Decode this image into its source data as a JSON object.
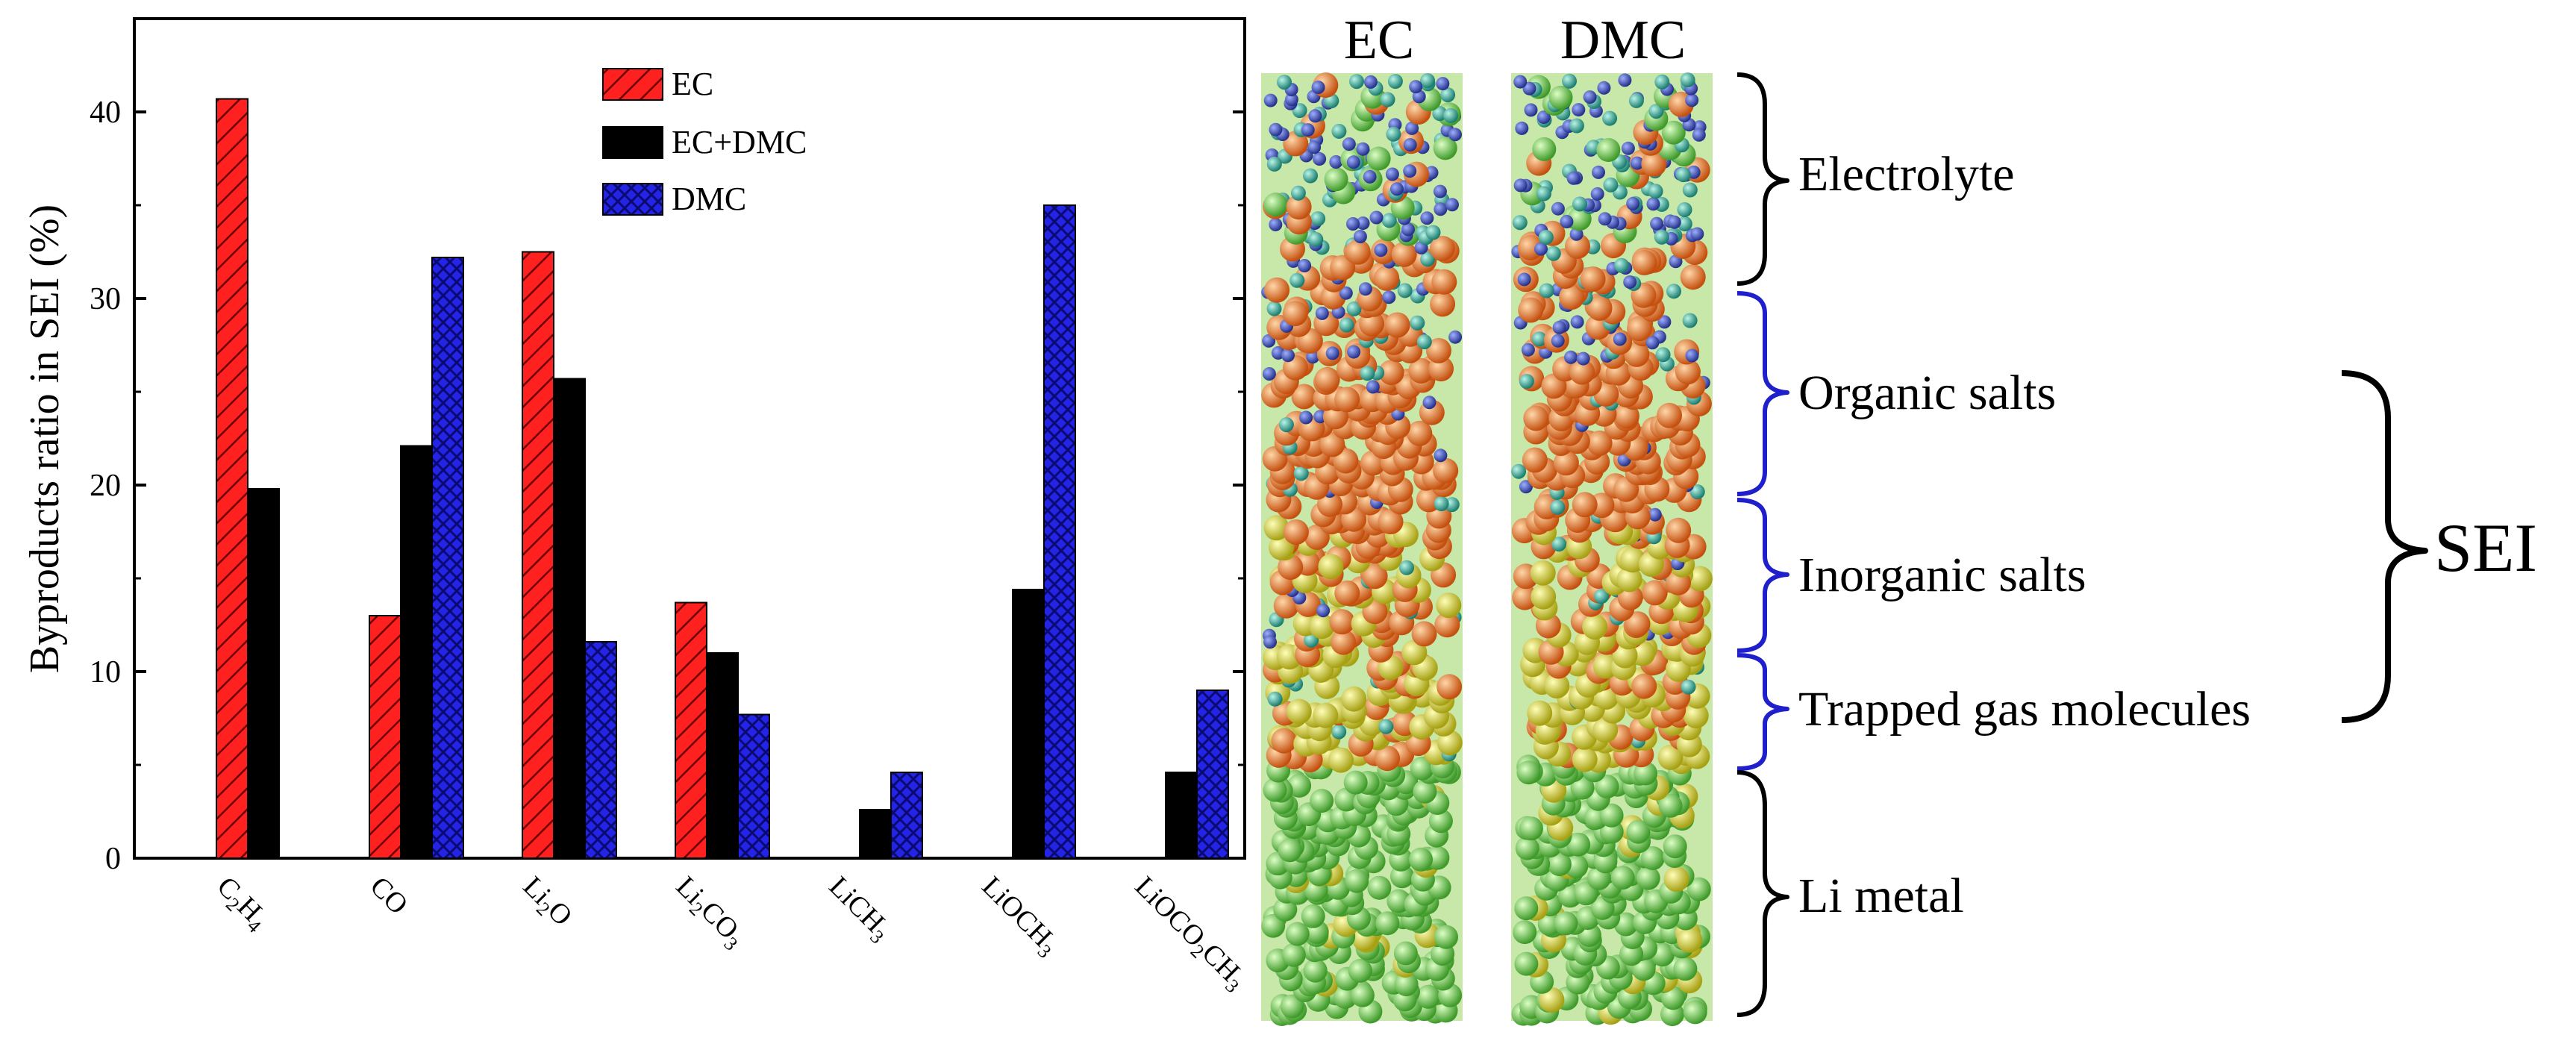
{
  "chart_data": {
    "type": "bar",
    "title": "",
    "xlabel": "",
    "ylabel": "Byproducts ratio in SEI (%)",
    "ylim": [
      0,
      45
    ],
    "yticks": [
      0,
      10,
      20,
      30,
      40
    ],
    "categories": [
      "C2H4",
      "CO",
      "Li2O",
      "Li2CO3",
      "LiCH3",
      "LiOCH3",
      "LiOCO2CH3"
    ],
    "category_labels": [
      [
        {
          "t": "C"
        },
        {
          "t": "2",
          "sub": true
        },
        {
          "t": "H"
        },
        {
          "t": "4",
          "sub": true
        }
      ],
      [
        {
          "t": "CO"
        }
      ],
      [
        {
          "t": "Li"
        },
        {
          "t": "2",
          "sub": true
        },
        {
          "t": "O"
        }
      ],
      [
        {
          "t": "Li"
        },
        {
          "t": "2",
          "sub": true
        },
        {
          "t": "CO"
        },
        {
          "t": "3",
          "sub": true
        }
      ],
      [
        {
          "t": "LiCH"
        },
        {
          "t": "3",
          "sub": true
        }
      ],
      [
        {
          "t": "LiOCH"
        },
        {
          "t": "3",
          "sub": true
        }
      ],
      [
        {
          "t": "LiOCO"
        },
        {
          "t": "2",
          "sub": true
        },
        {
          "t": "CH"
        },
        {
          "t": "3",
          "sub": true
        }
      ]
    ],
    "series": [
      {
        "name": "EC",
        "color": "#ff1a1a",
        "pattern": "hatch",
        "values": [
          40.7,
          13.0,
          32.5,
          13.7,
          0,
          0,
          0
        ]
      },
      {
        "name": "EC+DMC",
        "color": "#000000",
        "pattern": "solid",
        "values": [
          19.8,
          22.1,
          25.7,
          11.0,
          2.6,
          14.4,
          4.6
        ]
      },
      {
        "name": "DMC",
        "color": "#1f1fe0",
        "pattern": "cross",
        "values": [
          0,
          32.2,
          11.6,
          7.7,
          4.6,
          35.0,
          9.0
        ]
      }
    ],
    "legend_position": "top-right"
  },
  "simulation": {
    "column_labels": [
      "EC",
      "DMC"
    ],
    "layers": [
      "Electrolyte",
      "Organic salts",
      "Inorganic salts",
      "Trapped gas molecules",
      "Li metal"
    ],
    "group_label": "SEI"
  },
  "colors": {
    "bracket_blue": "#1f1fcc",
    "bracket_black": "#000000",
    "atom_blue": "#3a4db8",
    "atom_teal": "#2ea89a",
    "atom_orange": "#f07a22",
    "atom_yellow": "#d9d92a",
    "atom_green": "#66cc44"
  }
}
